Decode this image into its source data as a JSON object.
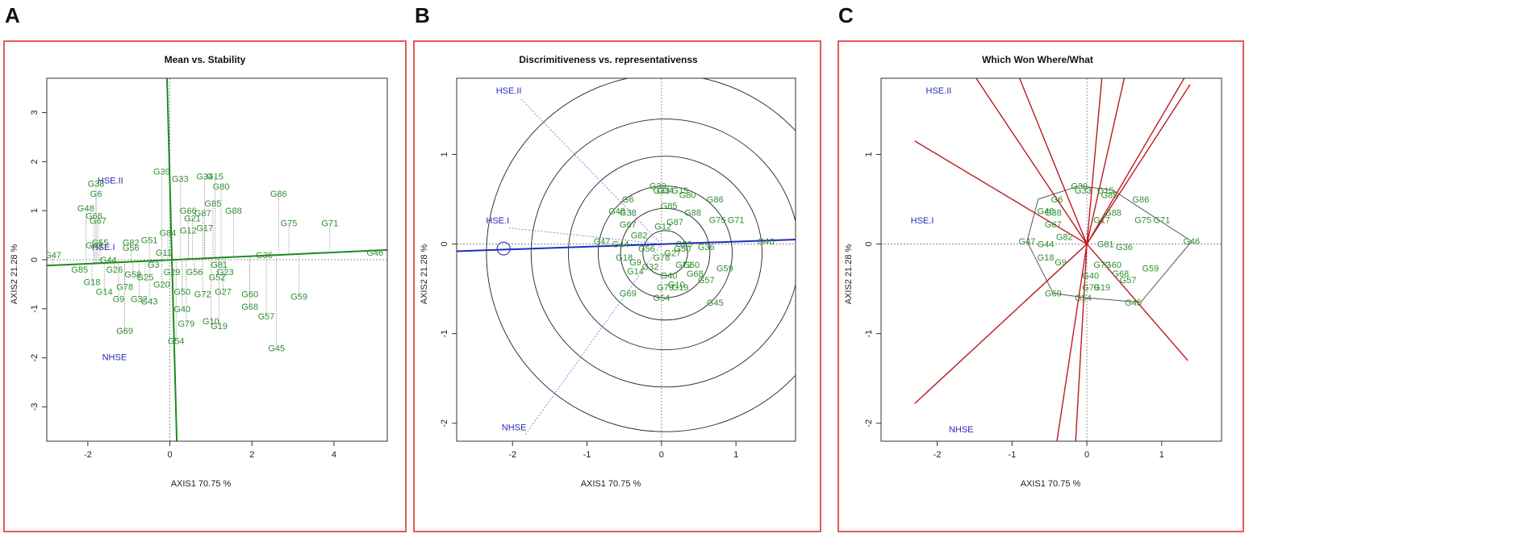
{
  "panels": [
    {
      "letter": "A",
      "title": "Mean vs. Stability",
      "xlabel": "AXIS1 70.75 %",
      "ylabel": "AXIS2 21.28 %",
      "xlim": [
        -3.0,
        5.3
      ],
      "ylim": [
        -3.7,
        3.7
      ],
      "xticks": [
        -2,
        0,
        2,
        4
      ],
      "yticks": [
        -3,
        -2,
        -1,
        0,
        1,
        2,
        3
      ],
      "env_labels": [
        {
          "label": "HSE.II",
          "x": -1.45,
          "y": 1.55
        },
        {
          "label": "HSE.I",
          "x": -1.62,
          "y": 0.2
        },
        {
          "label": "NHSE",
          "x": -1.35,
          "y": -2.05
        }
      ],
      "lines": [
        {
          "x1": -3.0,
          "y1": -0.12,
          "x2": 5.3,
          "y2": 0.2
        },
        {
          "x1": -0.07,
          "y1": 3.75,
          "x2": 0.17,
          "y2": -3.75
        }
      ],
      "genotypes": [
        {
          "label": "G46",
          "x": 5.0,
          "y": 0.15
        },
        {
          "label": "G71",
          "x": 3.9,
          "y": 0.75
        },
        {
          "label": "G86",
          "x": 2.65,
          "y": 1.35
        },
        {
          "label": "G75",
          "x": 2.9,
          "y": 0.75
        },
        {
          "label": "G59",
          "x": 3.15,
          "y": -0.75
        },
        {
          "label": "G45",
          "x": 2.6,
          "y": -1.8
        },
        {
          "label": "G57",
          "x": 2.35,
          "y": -1.15
        },
        {
          "label": "G36",
          "x": 2.3,
          "y": 0.1
        },
        {
          "label": "G68",
          "x": 1.95,
          "y": -0.95
        },
        {
          "label": "G60",
          "x": 1.95,
          "y": -0.7
        },
        {
          "label": "G88",
          "x": 1.55,
          "y": 1.0
        },
        {
          "label": "G80",
          "x": 1.25,
          "y": 1.5
        },
        {
          "label": "G34",
          "x": 0.85,
          "y": 1.7
        },
        {
          "label": "G15",
          "x": 1.1,
          "y": 1.7
        },
        {
          "label": "G33",
          "x": 0.25,
          "y": 1.65
        },
        {
          "label": "G39",
          "x": -0.2,
          "y": 1.8
        },
        {
          "label": "G85",
          "x": 1.05,
          "y": 1.15
        },
        {
          "label": "G87",
          "x": 0.8,
          "y": 0.95
        },
        {
          "label": "G66",
          "x": 0.45,
          "y": 1.0
        },
        {
          "label": "G21",
          "x": 0.55,
          "y": 0.85
        },
        {
          "label": "G17",
          "x": 0.85,
          "y": 0.65
        },
        {
          "label": "G12",
          "x": 0.45,
          "y": 0.6
        },
        {
          "label": "G84",
          "x": -0.05,
          "y": 0.55
        },
        {
          "label": "G51",
          "x": -0.5,
          "y": 0.4
        },
        {
          "label": "G82",
          "x": -0.95,
          "y": 0.35
        },
        {
          "label": "G56",
          "x": -0.95,
          "y": 0.25
        },
        {
          "label": "G11",
          "x": -0.15,
          "y": 0.15
        },
        {
          "label": "G72",
          "x": 0.8,
          "y": -0.7
        },
        {
          "label": "G27",
          "x": 1.3,
          "y": -0.65
        },
        {
          "label": "G10",
          "x": 1.0,
          "y": -1.25
        },
        {
          "label": "G19",
          "x": 1.2,
          "y": -1.35
        },
        {
          "label": "G79",
          "x": 0.4,
          "y": -1.3
        },
        {
          "label": "G40",
          "x": 0.3,
          "y": -1.0
        },
        {
          "label": "G54",
          "x": 0.15,
          "y": -1.65
        },
        {
          "label": "G50",
          "x": 0.3,
          "y": -0.65
        },
        {
          "label": "G56",
          "x": 0.6,
          "y": -0.25
        },
        {
          "label": "G81",
          "x": 1.2,
          "y": -0.1
        },
        {
          "label": "G52",
          "x": 1.15,
          "y": -0.35
        },
        {
          "label": "G23",
          "x": 1.35,
          "y": -0.25
        },
        {
          "label": "G48",
          "x": -2.05,
          "y": 1.05
        },
        {
          "label": "G38",
          "x": -1.8,
          "y": 1.55
        },
        {
          "label": "G6",
          "x": -1.8,
          "y": 1.35
        },
        {
          "label": "G67",
          "x": -1.75,
          "y": 0.8
        },
        {
          "label": "G66",
          "x": -1.85,
          "y": 0.9
        },
        {
          "label": "G47",
          "x": -2.85,
          "y": 0.1
        },
        {
          "label": "G43",
          "x": -1.85,
          "y": 0.3
        },
        {
          "label": "G55",
          "x": -1.7,
          "y": 0.35
        },
        {
          "label": "G44",
          "x": -1.5,
          "y": 0.0
        },
        {
          "label": "G18",
          "x": -1.9,
          "y": -0.45
        },
        {
          "label": "G14",
          "x": -1.6,
          "y": -0.65
        },
        {
          "label": "G78",
          "x": -1.1,
          "y": -0.55
        },
        {
          "label": "G9",
          "x": -1.25,
          "y": -0.8
        },
        {
          "label": "G69",
          "x": -1.1,
          "y": -1.45
        },
        {
          "label": "G32",
          "x": -0.75,
          "y": -0.8
        },
        {
          "label": "G43",
          "x": -0.5,
          "y": -0.85
        },
        {
          "label": "G25",
          "x": -0.6,
          "y": -0.35
        },
        {
          "label": "G58",
          "x": -0.9,
          "y": -0.3
        },
        {
          "label": "G85",
          "x": -2.2,
          "y": -0.2
        },
        {
          "label": "G26",
          "x": -1.35,
          "y": -0.2
        },
        {
          "label": "G20",
          "x": -0.2,
          "y": -0.5
        },
        {
          "label": "G3",
          "x": -0.4,
          "y": -0.1
        },
        {
          "label": "G29",
          "x": 0.05,
          "y": -0.25
        }
      ]
    },
    {
      "letter": "B",
      "title": "Discrimitiveness vs. representativenss",
      "xlabel": "AXIS1 70.75 %",
      "ylabel": "AXIS2 21.28 %",
      "xlim": [
        -2.75,
        1.8
      ],
      "ylim": [
        -2.2,
        1.85
      ],
      "xticks": [
        -2,
        -1,
        0,
        1
      ],
      "yticks": [
        -2,
        -1,
        0,
        1
      ],
      "env_labels": [
        {
          "label": "HSE.II",
          "x": -2.05,
          "y": 1.68
        },
        {
          "label": "HSE.I",
          "x": -2.2,
          "y": 0.23
        },
        {
          "label": "NHSE",
          "x": -1.98,
          "y": -2.08
        }
      ],
      "lines": [
        {
          "x1": -2.75,
          "y1": -0.08,
          "x2": 1.8,
          "y2": 0.05
        }
      ],
      "genotypes": [
        {
          "label": "G46",
          "x": 1.4,
          "y": 0.03
        },
        {
          "label": "G71",
          "x": 1.0,
          "y": 0.27
        },
        {
          "label": "G75",
          "x": 0.75,
          "y": 0.27
        },
        {
          "label": "G86",
          "x": 0.72,
          "y": 0.5
        },
        {
          "label": "G36",
          "x": 0.6,
          "y": -0.03
        },
        {
          "label": "G59",
          "x": 0.85,
          "y": -0.27
        },
        {
          "label": "G45",
          "x": 0.72,
          "y": -0.65
        },
        {
          "label": "G57",
          "x": 0.6,
          "y": -0.4
        },
        {
          "label": "G68",
          "x": 0.45,
          "y": -0.33
        },
        {
          "label": "G60",
          "x": 0.4,
          "y": -0.23
        },
        {
          "label": "G88",
          "x": 0.42,
          "y": 0.35
        },
        {
          "label": "G80",
          "x": 0.35,
          "y": 0.55
        },
        {
          "label": "G15",
          "x": 0.25,
          "y": 0.6
        },
        {
          "label": "G34",
          "x": 0.05,
          "y": 0.6
        },
        {
          "label": "G39",
          "x": -0.05,
          "y": 0.65
        },
        {
          "label": "G33",
          "x": 0.0,
          "y": 0.6
        },
        {
          "label": "G85",
          "x": 0.1,
          "y": 0.43
        },
        {
          "label": "G87",
          "x": 0.18,
          "y": 0.25
        },
        {
          "label": "G6",
          "x": -0.45,
          "y": 0.5
        },
        {
          "label": "G48",
          "x": -0.6,
          "y": 0.37
        },
        {
          "label": "G38",
          "x": -0.45,
          "y": 0.35
        },
        {
          "label": "G67",
          "x": -0.45,
          "y": 0.22
        },
        {
          "label": "G47",
          "x": -0.8,
          "y": 0.03
        },
        {
          "label": "G69",
          "x": -0.45,
          "y": -0.55
        },
        {
          "label": "G54",
          "x": 0.0,
          "y": -0.6
        },
        {
          "label": "G79",
          "x": 0.05,
          "y": -0.48
        },
        {
          "label": "G19",
          "x": 0.25,
          "y": -0.48
        },
        {
          "label": "G10",
          "x": 0.2,
          "y": -0.45
        },
        {
          "label": "G40",
          "x": 0.1,
          "y": -0.35
        },
        {
          "label": "G72",
          "x": 0.3,
          "y": -0.23
        },
        {
          "label": "G50",
          "x": 0.28,
          "y": -0.05
        },
        {
          "label": "G12",
          "x": 0.02,
          "y": 0.2
        },
        {
          "label": "G82",
          "x": -0.3,
          "y": 0.1
        },
        {
          "label": "G44",
          "x": -0.55,
          "y": 0.0
        },
        {
          "label": "G56",
          "x": -0.2,
          "y": -0.05
        },
        {
          "label": "G9",
          "x": -0.35,
          "y": -0.2
        },
        {
          "label": "G32",
          "x": -0.15,
          "y": -0.25
        },
        {
          "label": "G18",
          "x": -0.5,
          "y": -0.15
        },
        {
          "label": "G14",
          "x": -0.35,
          "y": -0.3
        },
        {
          "label": "G78",
          "x": 0.0,
          "y": -0.15
        },
        {
          "label": "G23",
          "x": 0.3,
          "y": 0.0
        },
        {
          "label": "G27",
          "x": 0.15,
          "y": -0.1
        }
      ]
    },
    {
      "letter": "C",
      "title": "Which Won Where/What",
      "xlabel": "AXIS1 70.75 %",
      "ylabel": "AXIS2 21.28 %",
      "xlim": [
        -2.75,
        1.8
      ],
      "ylim": [
        -2.2,
        1.85
      ],
      "xticks": [
        -2,
        -1,
        0,
        1
      ],
      "yticks": [
        -2,
        -1,
        0,
        1
      ],
      "env_labels": [
        {
          "label": "HSE.II",
          "x": -1.98,
          "y": 1.68
        },
        {
          "label": "HSE.I",
          "x": -2.2,
          "y": 0.23
        },
        {
          "label": "NHSE",
          "x": -1.68,
          "y": -2.1
        }
      ],
      "rays": [
        {
          "x": -2.3,
          "y": 1.15
        },
        {
          "x": -1.48,
          "y": 1.85
        },
        {
          "x": -0.9,
          "y": 1.85
        },
        {
          "x": 0.2,
          "y": 1.85
        },
        {
          "x": 0.5,
          "y": 1.85
        },
        {
          "x": 1.3,
          "y": 1.85
        },
        {
          "x": 1.38,
          "y": 1.78
        },
        {
          "x": 1.35,
          "y": -1.3
        },
        {
          "x": -0.4,
          "y": -2.2
        },
        {
          "x": -0.15,
          "y": -2.2
        },
        {
          "x": -2.3,
          "y": -1.78
        }
      ],
      "hull": [
        {
          "x": -0.65,
          "y": 0.5
        },
        {
          "x": -0.1,
          "y": 0.65
        },
        {
          "x": 0.35,
          "y": 0.6
        },
        {
          "x": 1.4,
          "y": 0.03
        },
        {
          "x": 0.72,
          "y": -0.65
        },
        {
          "x": 0.0,
          "y": -0.6
        },
        {
          "x": -0.45,
          "y": -0.55
        },
        {
          "x": -0.8,
          "y": 0.03
        }
      ],
      "genotypes": [
        {
          "label": "G46",
          "x": 1.4,
          "y": 0.03
        },
        {
          "label": "G71",
          "x": 1.0,
          "y": 0.27
        },
        {
          "label": "G75",
          "x": 0.75,
          "y": 0.27
        },
        {
          "label": "G86",
          "x": 0.72,
          "y": 0.5
        },
        {
          "label": "G36",
          "x": 0.5,
          "y": -0.03
        },
        {
          "label": "G59",
          "x": 0.85,
          "y": -0.27
        },
        {
          "label": "G45",
          "x": 0.62,
          "y": -0.65
        },
        {
          "label": "G57",
          "x": 0.55,
          "y": -0.4
        },
        {
          "label": "G68",
          "x": 0.45,
          "y": -0.33
        },
        {
          "label": "G60",
          "x": 0.35,
          "y": -0.23
        },
        {
          "label": "G88",
          "x": 0.35,
          "y": 0.35
        },
        {
          "label": "G17",
          "x": 0.2,
          "y": 0.27
        },
        {
          "label": "G15",
          "x": 0.25,
          "y": 0.6
        },
        {
          "label": "G39",
          "x": -0.1,
          "y": 0.65
        },
        {
          "label": "G33",
          "x": -0.05,
          "y": 0.6
        },
        {
          "label": "G85",
          "x": 0.3,
          "y": 0.55
        },
        {
          "label": "G48",
          "x": -0.55,
          "y": 0.37
        },
        {
          "label": "G38",
          "x": -0.45,
          "y": 0.35
        },
        {
          "label": "G67",
          "x": -0.45,
          "y": 0.22
        },
        {
          "label": "G6",
          "x": -0.4,
          "y": 0.5
        },
        {
          "label": "G47",
          "x": -0.8,
          "y": 0.03
        },
        {
          "label": "G69",
          "x": -0.45,
          "y": -0.55
        },
        {
          "label": "G54",
          "x": -0.05,
          "y": -0.6
        },
        {
          "label": "G79",
          "x": 0.05,
          "y": -0.48
        },
        {
          "label": "G19",
          "x": 0.2,
          "y": -0.48
        },
        {
          "label": "G40",
          "x": 0.05,
          "y": -0.35
        },
        {
          "label": "G72",
          "x": 0.2,
          "y": -0.23
        },
        {
          "label": "G81",
          "x": 0.25,
          "y": 0.0
        },
        {
          "label": "G82",
          "x": -0.3,
          "y": 0.08
        },
        {
          "label": "G44",
          "x": -0.55,
          "y": 0.0
        },
        {
          "label": "G9",
          "x": -0.35,
          "y": -0.2
        },
        {
          "label": "G18",
          "x": -0.55,
          "y": -0.15
        }
      ]
    }
  ]
}
